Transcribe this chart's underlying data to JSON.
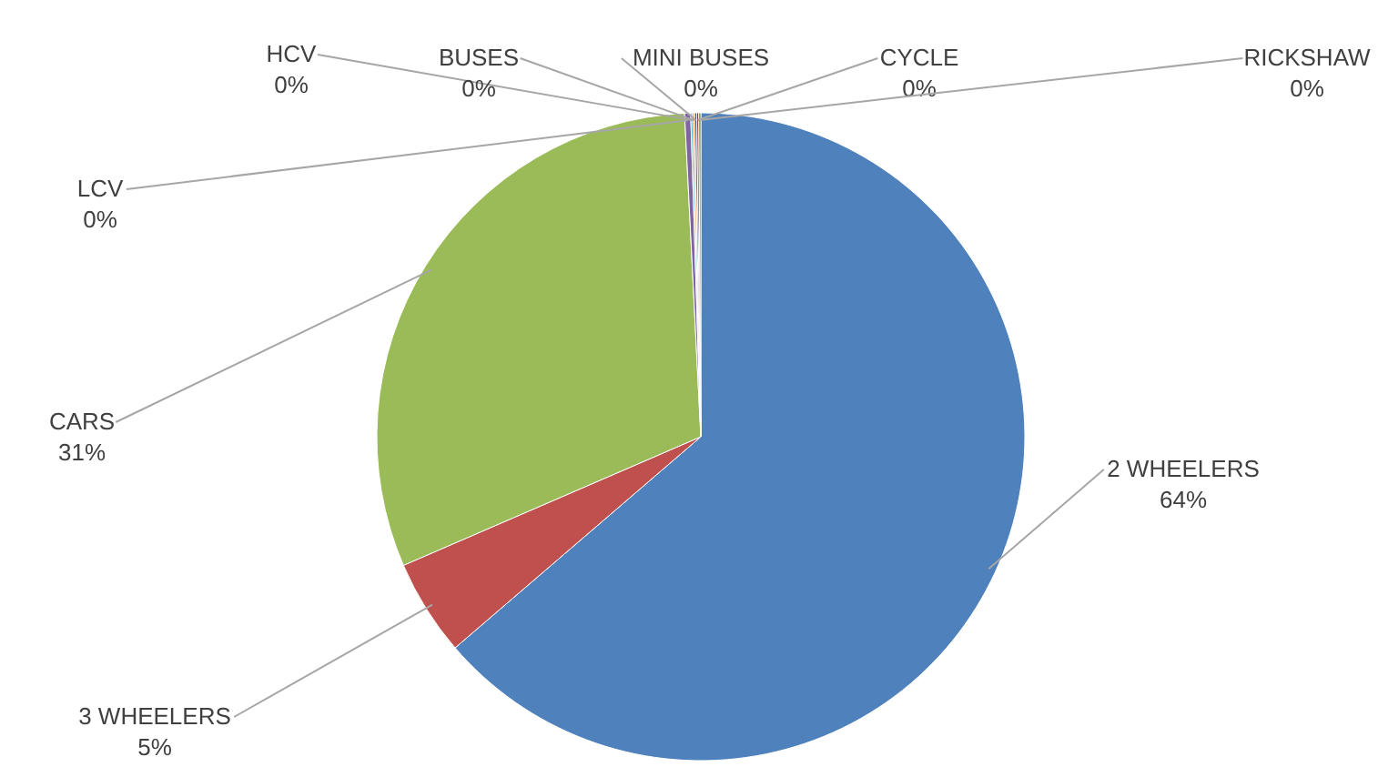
{
  "chart_data": {
    "type": "pie",
    "categories": [
      "2 WHEELERS",
      "3 WHEELERS",
      "CARS",
      "LCV",
      "HCV",
      "BUSES",
      "MINI BUSES",
      "CYCLE",
      "RICKSHAW"
    ],
    "values": [
      63.7,
      4.8,
      30.7,
      0.3,
      0.1,
      0.1,
      0.1,
      0.1,
      0.1
    ],
    "value_labels": [
      "64%",
      "5%",
      "31%",
      "0%",
      "0%",
      "0%",
      "0%",
      "0%",
      "0%"
    ],
    "colors": [
      "#4f81bd",
      "#c0504d",
      "#9bbb59",
      "#8064a2",
      "#4bacc6",
      "#f79646",
      "#2c4d75",
      "#772c2a",
      "#5f7530"
    ]
  }
}
